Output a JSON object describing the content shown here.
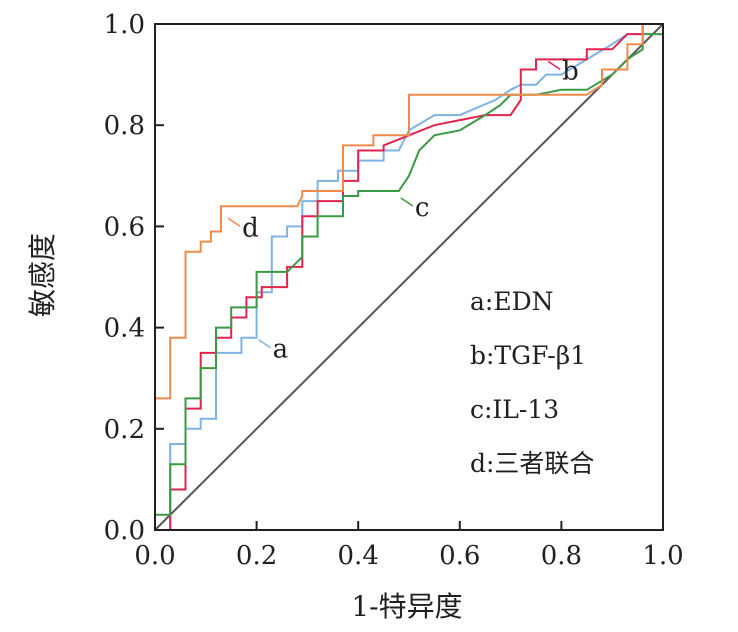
{
  "chart_data": {
    "type": "line",
    "title": "",
    "xlabel": "1-特异度",
    "ylabel": "敏感度",
    "xlim": [
      0,
      1
    ],
    "ylim": [
      0,
      1
    ],
    "x_ticks": [
      "0.0",
      "0.2",
      "0.4",
      "0.6",
      "0.8",
      "1.0"
    ],
    "y_ticks": [
      "0.0",
      "0.2",
      "0.4",
      "0.6",
      "0.8",
      "1.0"
    ],
    "grid": false,
    "legend_position": "lower-right",
    "legend": [
      {
        "key": "a",
        "text": "a:EDN"
      },
      {
        "key": "b",
        "text": "b:TGF-β1"
      },
      {
        "key": "c",
        "text": "c:IL-13"
      },
      {
        "key": "d",
        "text": "d:三者联合"
      }
    ],
    "reference_line": {
      "x": [
        0,
        1
      ],
      "y": [
        0,
        1
      ],
      "color": "#555555"
    },
    "series": [
      {
        "key": "a",
        "color": "#7fb3e3",
        "label": {
          "text": "a",
          "at": [
            0.2,
            0.38
          ]
        },
        "x": [
          0.03,
          0.03,
          0.06,
          0.06,
          0.09,
          0.09,
          0.12,
          0.12,
          0.17,
          0.17,
          0.2,
          0.2,
          0.23,
          0.23,
          0.26,
          0.26,
          0.29,
          0.29,
          0.32,
          0.32,
          0.36,
          0.36,
          0.4,
          0.4,
          0.45,
          0.45,
          0.48,
          0.5,
          0.55,
          0.6,
          0.67,
          0.7,
          0.72,
          0.75,
          0.77,
          0.8,
          0.85,
          0.9,
          0.93,
          0.96,
          0.96,
          1.0,
          1.0
        ],
        "y": [
          0.0,
          0.17,
          0.17,
          0.2,
          0.2,
          0.22,
          0.22,
          0.35,
          0.35,
          0.38,
          0.38,
          0.47,
          0.47,
          0.58,
          0.58,
          0.6,
          0.6,
          0.65,
          0.65,
          0.69,
          0.69,
          0.71,
          0.71,
          0.73,
          0.73,
          0.75,
          0.75,
          0.79,
          0.82,
          0.82,
          0.85,
          0.87,
          0.88,
          0.88,
          0.9,
          0.9,
          0.93,
          0.96,
          0.98,
          0.98,
          1.0,
          1.0,
          1.0
        ]
      },
      {
        "key": "b",
        "color": "#e0244d",
        "label": {
          "text": "b",
          "at": [
            0.77,
            0.93
          ]
        },
        "x": [
          0.0,
          0.03,
          0.03,
          0.06,
          0.06,
          0.09,
          0.09,
          0.12,
          0.12,
          0.15,
          0.15,
          0.18,
          0.18,
          0.21,
          0.21,
          0.26,
          0.26,
          0.29,
          0.29,
          0.32,
          0.32,
          0.37,
          0.37,
          0.4,
          0.4,
          0.45,
          0.45,
          0.5,
          0.55,
          0.6,
          0.65,
          0.7,
          0.72,
          0.72,
          0.75,
          0.75,
          0.8,
          0.85,
          0.85,
          0.9,
          0.93,
          0.96,
          0.96,
          1.0
        ],
        "y": [
          0.0,
          0.0,
          0.08,
          0.08,
          0.24,
          0.24,
          0.35,
          0.35,
          0.38,
          0.38,
          0.42,
          0.42,
          0.46,
          0.46,
          0.48,
          0.48,
          0.52,
          0.52,
          0.62,
          0.62,
          0.65,
          0.65,
          0.69,
          0.69,
          0.75,
          0.75,
          0.76,
          0.78,
          0.8,
          0.81,
          0.82,
          0.82,
          0.85,
          0.91,
          0.91,
          0.93,
          0.93,
          0.93,
          0.95,
          0.95,
          0.98,
          0.98,
          1.0,
          1.0
        ]
      },
      {
        "key": "c",
        "color": "#3a9a44",
        "label": {
          "text": "c",
          "at": [
            0.48,
            0.66
          ]
        },
        "x": [
          0.0,
          0.03,
          0.03,
          0.06,
          0.06,
          0.09,
          0.09,
          0.12,
          0.12,
          0.15,
          0.15,
          0.2,
          0.2,
          0.26,
          0.29,
          0.29,
          0.32,
          0.32,
          0.37,
          0.37,
          0.4,
          0.4,
          0.45,
          0.48,
          0.5,
          0.52,
          0.55,
          0.6,
          0.65,
          0.68,
          0.7,
          0.75,
          0.8,
          0.85,
          0.9,
          0.93,
          0.96,
          0.96,
          1.0
        ],
        "y": [
          0.03,
          0.03,
          0.13,
          0.13,
          0.26,
          0.26,
          0.32,
          0.32,
          0.4,
          0.4,
          0.44,
          0.44,
          0.51,
          0.51,
          0.54,
          0.58,
          0.58,
          0.62,
          0.62,
          0.66,
          0.66,
          0.67,
          0.67,
          0.67,
          0.7,
          0.75,
          0.78,
          0.79,
          0.82,
          0.84,
          0.86,
          0.86,
          0.87,
          0.87,
          0.9,
          0.93,
          0.95,
          0.98,
          0.98
        ]
      },
      {
        "key": "d",
        "color": "#f08a4b",
        "label": {
          "text": "d",
          "at": [
            0.14,
            0.62
          ]
        },
        "x": [
          0.0,
          0.0,
          0.03,
          0.03,
          0.06,
          0.06,
          0.09,
          0.09,
          0.11,
          0.11,
          0.13,
          0.13,
          0.2,
          0.28,
          0.29,
          0.29,
          0.37,
          0.37,
          0.43,
          0.43,
          0.5,
          0.5,
          0.6,
          0.7,
          0.8,
          0.85,
          0.88,
          0.88,
          0.93,
          0.93,
          0.96,
          0.96,
          1.0
        ],
        "y": [
          0.0,
          0.26,
          0.26,
          0.38,
          0.38,
          0.55,
          0.55,
          0.57,
          0.57,
          0.59,
          0.59,
          0.64,
          0.64,
          0.64,
          0.66,
          0.67,
          0.67,
          0.76,
          0.76,
          0.78,
          0.78,
          0.86,
          0.86,
          0.86,
          0.86,
          0.86,
          0.88,
          0.91,
          0.91,
          0.96,
          0.96,
          1.0,
          1.0
        ]
      }
    ]
  }
}
